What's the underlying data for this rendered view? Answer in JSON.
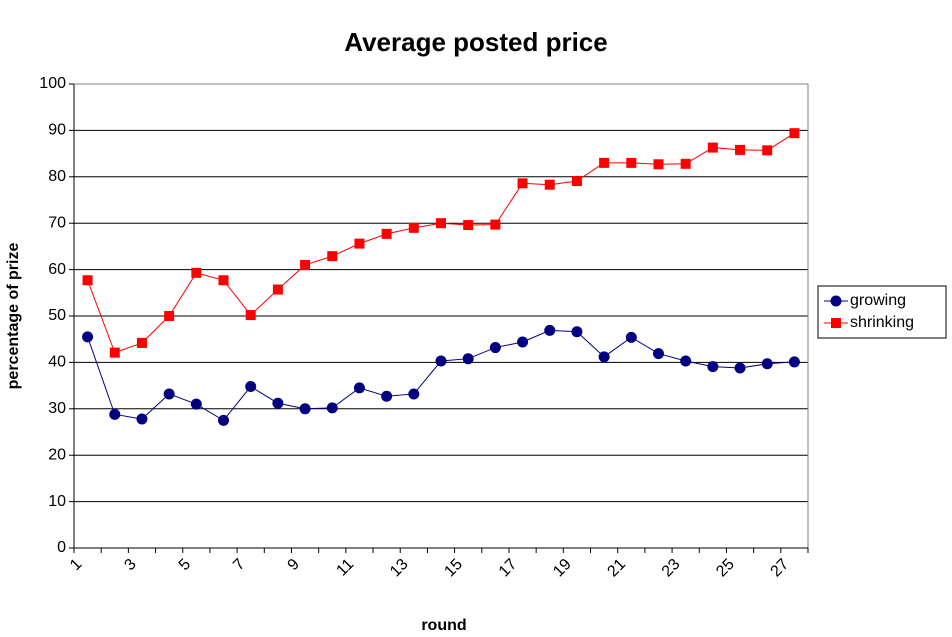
{
  "chart_data": {
    "type": "line",
    "title": "Average posted price",
    "x_label": "round",
    "y_label": "percentage of prize",
    "categories": [
      "1",
      null,
      "3",
      null,
      "5",
      null,
      "7",
      null,
      "9",
      null,
      "11",
      null,
      "13",
      null,
      "15",
      null,
      "17",
      null,
      "19",
      null,
      "21",
      null,
      "23",
      null,
      "25",
      null,
      "27"
    ],
    "series": [
      {
        "name": "growing",
        "color": "#000080",
        "marker": "circle",
        "values": [
          45.5,
          28.8,
          27.8,
          33.2,
          31,
          27.5,
          34.8,
          31.2,
          30,
          30.2,
          34.5,
          32.7,
          33.2,
          40.3,
          40.8,
          43.2,
          44.4,
          46.9,
          46.6,
          41.2,
          45.4,
          41.9,
          40.3,
          39.1,
          38.8,
          39.7,
          40.1
        ]
      },
      {
        "name": "shrinking",
        "color": "#ff0000",
        "marker": "square",
        "values": [
          57.7,
          42.1,
          44.2,
          50,
          59.3,
          57.7,
          50.2,
          55.7,
          61,
          62.9,
          65.6,
          67.7,
          69,
          70,
          69.6,
          69.7,
          78.6,
          78.3,
          79.1,
          83,
          83,
          82.7,
          82.8,
          86.3,
          85.8,
          85.7,
          89.4
        ]
      }
    ],
    "ylim": [
      0,
      100
    ],
    "yticks": [
      0,
      10,
      20,
      30,
      40,
      50,
      60,
      70,
      80,
      90,
      100
    ],
    "grid": true,
    "legend": "right"
  }
}
